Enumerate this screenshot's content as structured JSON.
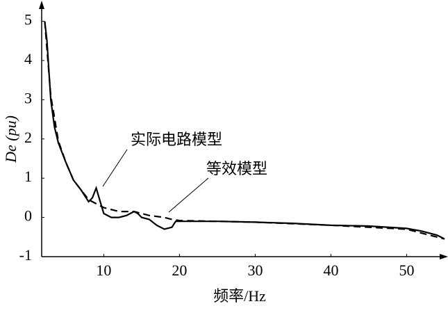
{
  "chart_data": {
    "type": "line",
    "ylabel": "De (pu)",
    "xlabel": "频率/Hz",
    "xlim": [
      1.8,
      55
    ],
    "ylim": [
      -1,
      5.4
    ],
    "xticks": [
      10,
      20,
      30,
      40,
      50
    ],
    "yticks": [
      -1,
      0,
      1,
      2,
      3,
      4,
      5
    ],
    "grid": false,
    "series": [
      {
        "name": "实际电路模型",
        "color": "#000000",
        "dash": false,
        "x": [
          2.2,
          2.5,
          3,
          3.5,
          4,
          5,
          6,
          7,
          8,
          8.5,
          9,
          9.3,
          10,
          11,
          12,
          13,
          14,
          14.5,
          15,
          16,
          17,
          18,
          19,
          19.5,
          20,
          25,
          30,
          35,
          40,
          45,
          50,
          52,
          54,
          55
        ],
        "values": [
          5,
          4.5,
          3,
          2.3,
          1.9,
          1.4,
          0.95,
          0.7,
          0.4,
          0.5,
          0.75,
          0.55,
          0.1,
          0,
          0,
          0.05,
          0.15,
          0.1,
          0,
          -0.05,
          -0.2,
          -0.3,
          -0.25,
          -0.1,
          -0.1,
          -0.1,
          -0.12,
          -0.15,
          -0.2,
          -0.22,
          -0.28,
          -0.35,
          -0.45,
          -0.55
        ]
      },
      {
        "name": "等效模型",
        "color": "#000000",
        "dash": true,
        "x": [
          2.2,
          3,
          4,
          5,
          6,
          7,
          8,
          9,
          10,
          12,
          14,
          16,
          18,
          19,
          20,
          25,
          30,
          40,
          50,
          55
        ],
        "values": [
          5,
          3.1,
          1.95,
          1.4,
          0.95,
          0.7,
          0.45,
          0.35,
          0.25,
          0.15,
          0.15,
          0.05,
          0,
          -0.05,
          -0.08,
          -0.1,
          -0.12,
          -0.2,
          -0.3,
          -0.55
        ]
      }
    ]
  }
}
